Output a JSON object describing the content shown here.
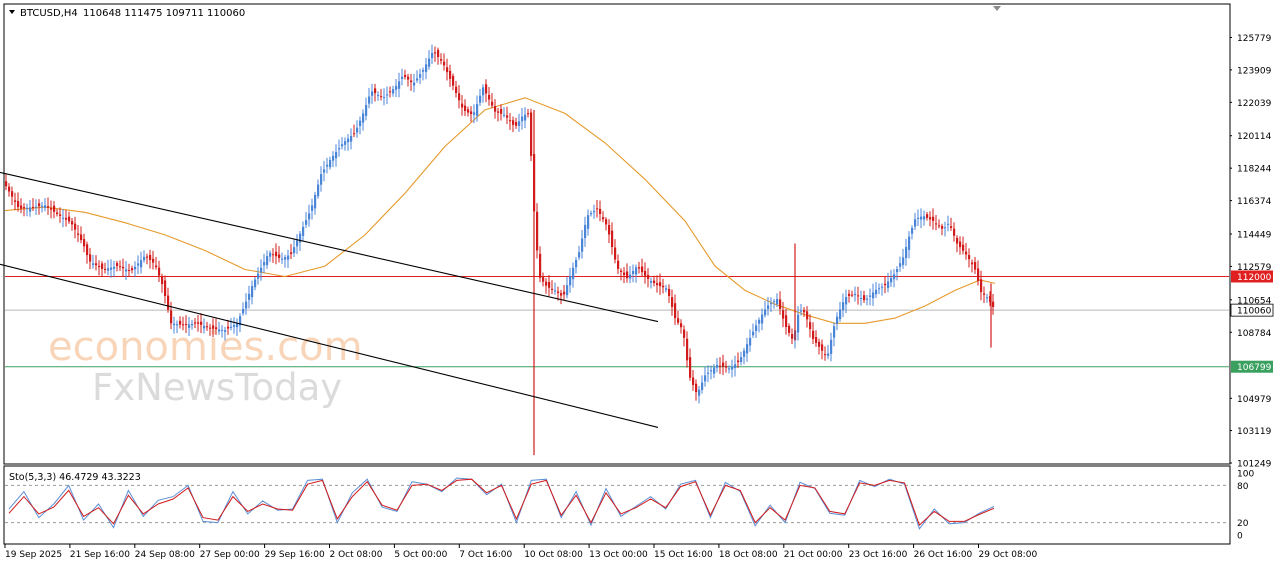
{
  "header": {
    "symbol": "BTCUSD,H4",
    "ohlc": "110648 111475 109711 110060"
  },
  "watermark": {
    "line1": "economies.com",
    "line2": "FxNewsToday"
  },
  "colors": {
    "bull": "#4a86d8",
    "bear": "#d21a1a",
    "ma": "#e59a2a",
    "resistance_line": "#e02020",
    "support_line": "#3aa060",
    "current_line": "#b8b8b8",
    "current_tag": "#ffffff",
    "channel": "#000000",
    "stoch_main": "#5b8fd6",
    "stoch_signal": "#d21a1a"
  },
  "chart_data": [
    {
      "type": "candlestick",
      "title": "BTCUSD,H4",
      "ylim": [
        101249,
        127649
      ],
      "price_ticks": [
        "125779",
        "123909",
        "122039",
        "120114",
        "118244",
        "116374",
        "114449",
        "112579",
        "110654",
        "108784",
        "104979",
        "103119",
        "101249"
      ],
      "levels": [
        {
          "label": "112000",
          "value": 112000,
          "style": "resistance"
        },
        {
          "label": "110060",
          "value": 110060,
          "style": "current"
        },
        {
          "label": "106799",
          "value": 106799,
          "style": "support"
        }
      ],
      "channel": [
        {
          "from": [
            "15 Oct 16:00",
            109400
          ],
          "to": [
            "29 Oct 16:00",
            118000
          ]
        },
        {
          "from": [
            "15 Oct 16:00",
            103300
          ],
          "to": [
            "29 Oct 16:00",
            112700
          ]
        }
      ],
      "x_labels": [
        "19 Sep 2025",
        "21 Sep 16:00",
        "24 Sep 08:00",
        "27 Sep 00:00",
        "29 Sep 16:00",
        "2 Oct 08:00",
        "5 Oct 00:00",
        "7 Oct 16:00",
        "10 Oct 08:00",
        "13 Oct 00:00",
        "15 Oct 16:00",
        "18 Oct 08:00",
        "21 Oct 00:00",
        "23 Oct 16:00",
        "26 Oct 16:00",
        "29 Oct 08:00"
      ],
      "close_path": [
        [
          0,
          117300
        ],
        [
          14,
          115900
        ],
        [
          28,
          116000
        ],
        [
          40,
          116100
        ],
        [
          52,
          115600
        ],
        [
          66,
          115100
        ],
        [
          78,
          113900
        ],
        [
          84,
          112900
        ],
        [
          98,
          112400
        ],
        [
          112,
          112600
        ],
        [
          126,
          112300
        ],
        [
          140,
          113200
        ],
        [
          150,
          112700
        ],
        [
          158,
          111400
        ],
        [
          166,
          109300
        ],
        [
          178,
          109200
        ],
        [
          192,
          109300
        ],
        [
          206,
          109000
        ],
        [
          220,
          108900
        ],
        [
          232,
          109300
        ],
        [
          240,
          110400
        ],
        [
          248,
          111600
        ],
        [
          256,
          112500
        ],
        [
          264,
          113400
        ],
        [
          276,
          113000
        ],
        [
          286,
          113300
        ],
        [
          296,
          114600
        ],
        [
          306,
          115900
        ],
        [
          316,
          117900
        ],
        [
          326,
          118800
        ],
        [
          338,
          119700
        ],
        [
          350,
          120300
        ],
        [
          358,
          121400
        ],
        [
          366,
          122700
        ],
        [
          378,
          122300
        ],
        [
          390,
          122900
        ],
        [
          398,
          123600
        ],
        [
          408,
          123100
        ],
        [
          418,
          123900
        ],
        [
          428,
          125000
        ],
        [
          438,
          124300
        ],
        [
          448,
          123000
        ],
        [
          458,
          121600
        ],
        [
          468,
          121300
        ],
        [
          478,
          122900
        ],
        [
          490,
          121500
        ],
        [
          500,
          121300
        ],
        [
          510,
          120600
        ],
        [
          518,
          121300
        ],
        [
          524,
          121400
        ],
        [
          528,
          116500
        ],
        [
          534,
          112000
        ],
        [
          542,
          111400
        ],
        [
          550,
          111200
        ],
        [
          558,
          110800
        ],
        [
          566,
          112200
        ],
        [
          574,
          113400
        ],
        [
          582,
          115500
        ],
        [
          592,
          115900
        ],
        [
          602,
          114900
        ],
        [
          612,
          112500
        ],
        [
          622,
          111900
        ],
        [
          632,
          112600
        ],
        [
          642,
          111900
        ],
        [
          652,
          111500
        ],
        [
          662,
          111300
        ],
        [
          670,
          109600
        ],
        [
          678,
          108900
        ],
        [
          684,
          106300
        ],
        [
          692,
          105200
        ],
        [
          700,
          106300
        ],
        [
          712,
          106900
        ],
        [
          724,
          106700
        ],
        [
          734,
          107100
        ],
        [
          742,
          108100
        ],
        [
          752,
          109300
        ],
        [
          762,
          110300
        ],
        [
          772,
          110700
        ],
        [
          780,
          109200
        ],
        [
          788,
          108300
        ],
        [
          794,
          110100
        ],
        [
          800,
          109900
        ],
        [
          808,
          108400
        ],
        [
          816,
          107800
        ],
        [
          822,
          107300
        ],
        [
          830,
          109400
        ],
        [
          840,
          110800
        ],
        [
          850,
          111000
        ],
        [
          860,
          110600
        ],
        [
          870,
          111200
        ],
        [
          880,
          111500
        ],
        [
          890,
          112200
        ],
        [
          898,
          113100
        ],
        [
          904,
          114300
        ],
        [
          910,
          115300
        ],
        [
          918,
          115500
        ],
        [
          928,
          115200
        ],
        [
          938,
          114700
        ],
        [
          944,
          115100
        ],
        [
          952,
          113900
        ],
        [
          962,
          113200
        ],
        [
          970,
          112400
        ],
        [
          976,
          111100
        ],
        [
          982,
          110800
        ],
        [
          990,
          110060
        ]
      ],
      "ma_path": [
        [
          0,
          115800
        ],
        [
          40,
          116000
        ],
        [
          80,
          115700
        ],
        [
          120,
          115100
        ],
        [
          160,
          114400
        ],
        [
          200,
          113500
        ],
        [
          240,
          112400
        ],
        [
          280,
          112000
        ],
        [
          320,
          112600
        ],
        [
          360,
          114400
        ],
        [
          400,
          116800
        ],
        [
          440,
          119500
        ],
        [
          480,
          121600
        ],
        [
          520,
          122300
        ],
        [
          560,
          121400
        ],
        [
          600,
          119700
        ],
        [
          640,
          117600
        ],
        [
          680,
          115200
        ],
        [
          710,
          112600
        ],
        [
          740,
          111200
        ],
        [
          770,
          110400
        ],
        [
          800,
          109800
        ],
        [
          830,
          109300
        ],
        [
          860,
          109300
        ],
        [
          890,
          109600
        ],
        [
          920,
          110300
        ],
        [
          950,
          111200
        ],
        [
          975,
          111800
        ],
        [
          990,
          111600
        ]
      ],
      "spikes": [
        {
          "x": 529,
          "high": 121600,
          "low": 101700
        },
        {
          "x": 790,
          "high": 113900,
          "low": 108300
        },
        {
          "x": 986,
          "high": 111600,
          "low": 107900
        }
      ]
    },
    {
      "type": "line",
      "title": "Sto(5,3,3) 46.4729 43.3223",
      "ylim": [
        0,
        100
      ],
      "y_ticks": [
        "100",
        "80",
        "20",
        "0"
      ],
      "levels": [
        80,
        20
      ],
      "series": [
        {
          "name": "main",
          "values": [
            42,
            70,
            28,
            50,
            80,
            24,
            50,
            12,
            72,
            30,
            56,
            62,
            80,
            22,
            20,
            70,
            34,
            55,
            40,
            42,
            88,
            90,
            20,
            68,
            90,
            45,
            38,
            86,
            82,
            70,
            92,
            90,
            65,
            82,
            20,
            88,
            90,
            28,
            70,
            16,
            75,
            30,
            46,
            62,
            42,
            82,
            88,
            28,
            85,
            70,
            15,
            48,
            20,
            85,
            75,
            35,
            32,
            88,
            78,
            90,
            82,
            10,
            42,
            18,
            20,
            35,
            46
          ]
        },
        {
          "name": "signal",
          "values": [
            35,
            62,
            34,
            45,
            72,
            30,
            44,
            18,
            64,
            34,
            50,
            58,
            76,
            28,
            24,
            62,
            38,
            50,
            42,
            40,
            82,
            88,
            26,
            62,
            86,
            48,
            40,
            80,
            82,
            72,
            88,
            90,
            68,
            80,
            26,
            82,
            88,
            32,
            64,
            20,
            68,
            34,
            44,
            58,
            44,
            78,
            86,
            32,
            80,
            72,
            20,
            44,
            24,
            80,
            76,
            38,
            34,
            84,
            80,
            88,
            84,
            16,
            38,
            22,
            22,
            33,
            43
          ]
        }
      ]
    }
  ]
}
